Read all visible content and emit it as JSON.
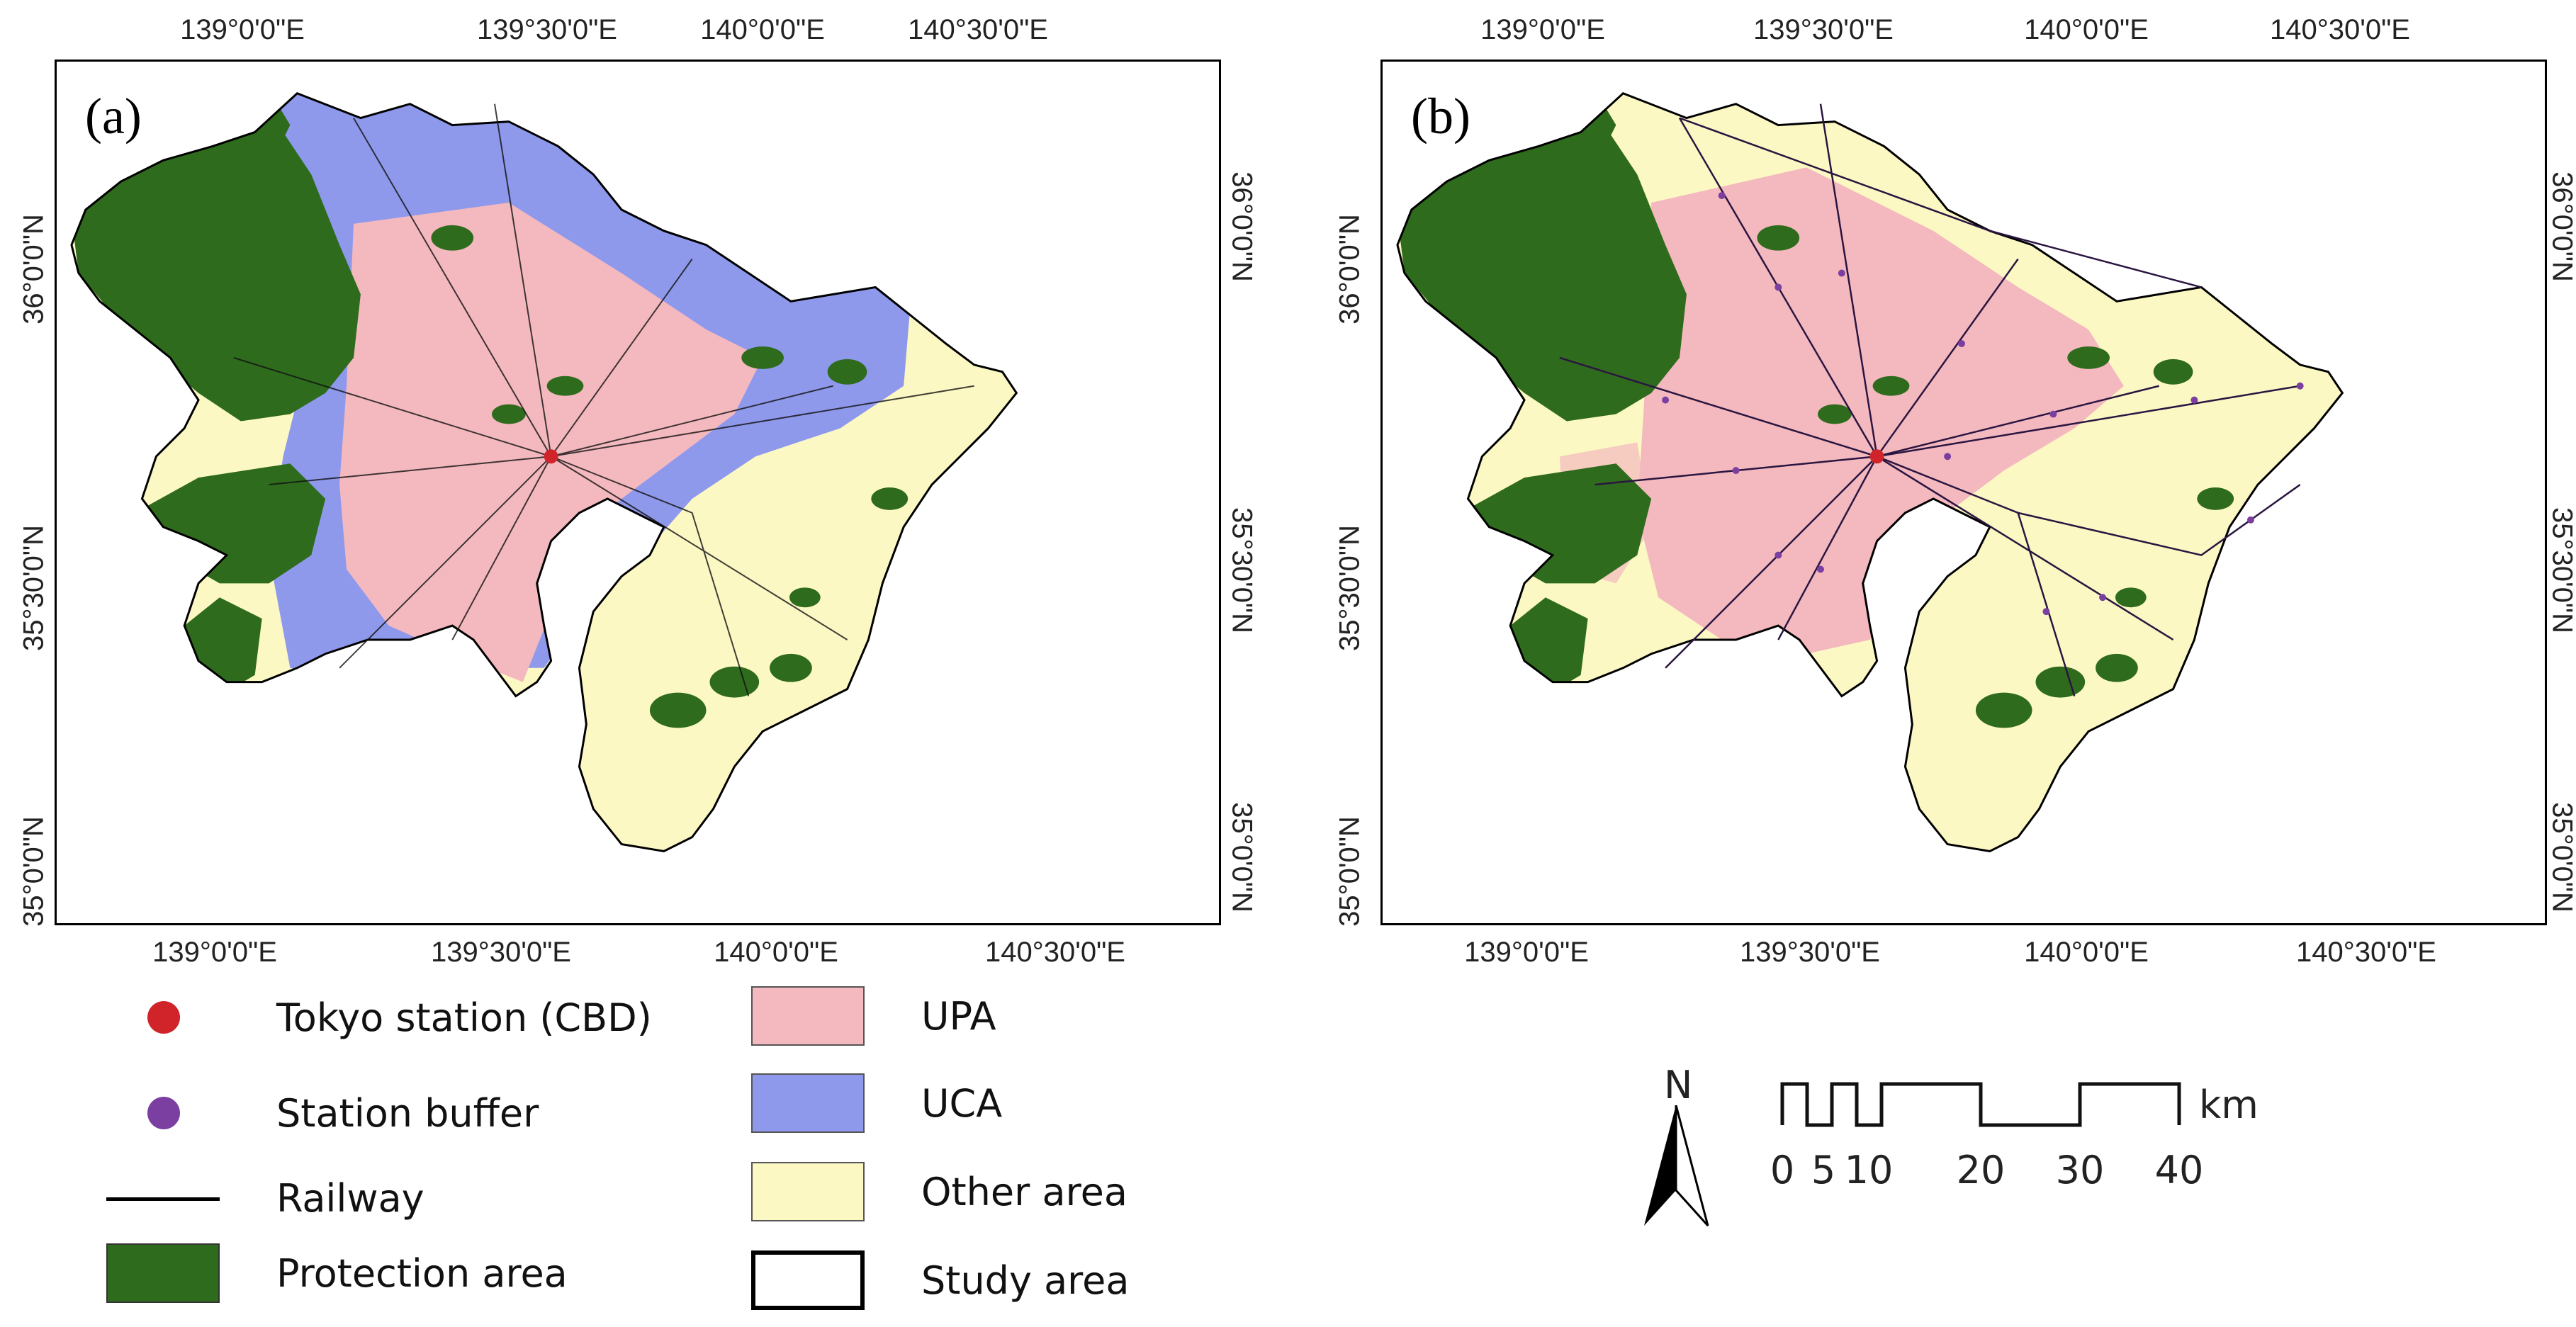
{
  "panels": [
    {
      "label": "(a)"
    },
    {
      "label": "(b)"
    }
  ],
  "axes": {
    "longitude_ticks": [
      "139°0'0\"E",
      "139°30'0\"E",
      "140°0'0\"E",
      "140°30'0\"E"
    ],
    "latitude_ticks": [
      "36°0'0\"N",
      "35°30'0\"N",
      "35°0'0\"N"
    ]
  },
  "legend": {
    "tokyo_station": "Tokyo station (CBD)",
    "station_buffer": "Station buffer",
    "railway": "Railway",
    "protection_area": "Protection area",
    "upa": "UPA",
    "uca": "UCA",
    "other_area": "Other area",
    "study_area": "Study area"
  },
  "colors": {
    "upa": "#f4b9bf",
    "uca": "#8f99ec",
    "other_area": "#fcf8c4",
    "protection_area": "#2f6b1d",
    "tokyo_station": "#d0242a",
    "station_buffer": "#7a3fa0",
    "railway": "#000000"
  },
  "north_arrow": {
    "label": "N"
  },
  "scale_bar": {
    "labels": [
      "0",
      "5",
      "10",
      "20",
      "30",
      "40"
    ],
    "unit": "km"
  }
}
